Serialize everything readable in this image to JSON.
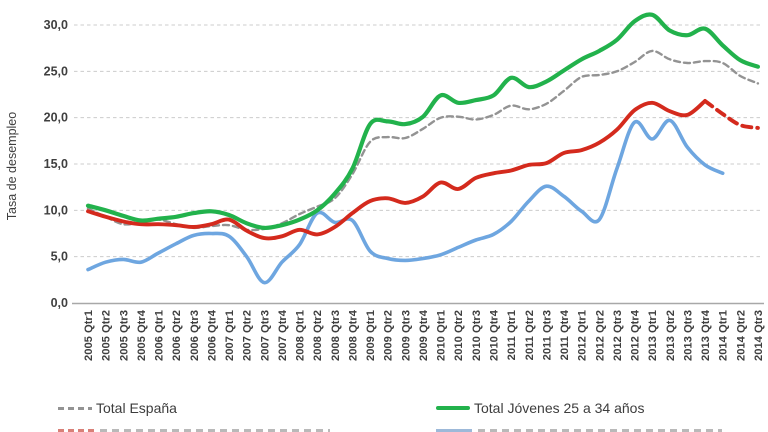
{
  "figure": {
    "y_axis": {
      "title": "Tasa de desempleo",
      "tick_labels": [
        "0,0",
        "5,0",
        "10,0",
        "15,0",
        "20,0",
        "25,0",
        "30,0"
      ],
      "tick_values": [
        0,
        5,
        10,
        15,
        20,
        25,
        30
      ]
    },
    "legend": [
      {
        "label": "Total España",
        "swatch": "dashed-gray",
        "color": "#939393"
      },
      {
        "label": "Total Jóvenes 25 a 34 años",
        "swatch": "solid-green",
        "color": "#22b24c"
      }
    ],
    "legend_row2_clipped": {
      "left_swatch_color": "#d98078",
      "right_swatch_color": "#9db9d9"
    }
  },
  "chart_data": {
    "type": "line",
    "title": "",
    "xlabel": "",
    "ylabel": "Tasa de desempleo",
    "ylim": [
      0,
      32.5
    ],
    "grid": "horizontal-dashed",
    "legend_position": "bottom",
    "categories": [
      "2005 Qtr1",
      "2005 Qtr2",
      "2005 Qtr3",
      "2005 Qtr4",
      "2006 Qtr1",
      "2006 Qtr2",
      "2006 Qtr3",
      "2006 Qtr4",
      "2007 Qtr1",
      "2007 Qtr2",
      "2007 Qtr3",
      "2007 Qtr4",
      "2008 Qtr1",
      "2008 Qtr2",
      "2008 Qtr3",
      "2008 Qtr4",
      "2009 Qtr1",
      "2009 Qtr2",
      "2009 Qtr3",
      "2009 Qtr4",
      "2010 Qtr1",
      "2010 Qtr2",
      "2010 Qtr3",
      "2010 Qtr4",
      "2011 Qtr1",
      "2011 Qtr2",
      "2011 Qtr3",
      "2011 Qtr4",
      "2012 Qtr1",
      "2012 Qtr2",
      "2012 Qtr3",
      "2012 Qtr4",
      "2013 Qtr1",
      "2013 Qtr2",
      "2013 Qtr3",
      "2013 Qtr4",
      "2014 Qtr1",
      "2014 Qtr2",
      "2014 Qtr3"
    ],
    "series": [
      {
        "id": "espana",
        "label": "Total España",
        "color": "#939393",
        "stroke_width": 2.4,
        "line_style": "dashed",
        "dash": "6 4",
        "start_index": 0,
        "values": [
          10.2,
          9.3,
          8.5,
          8.7,
          9.0,
          8.5,
          8.1,
          8.3,
          8.4,
          7.9,
          8.0,
          8.6,
          9.6,
          10.4,
          11.3,
          13.9,
          17.4,
          17.9,
          17.8,
          18.8,
          20.0,
          20.1,
          19.8,
          20.3,
          21.3,
          20.9,
          21.5,
          22.9,
          24.4,
          24.6,
          25.0,
          26.0,
          27.2,
          26.3,
          25.9,
          26.1,
          25.9,
          24.5,
          23.7
        ]
      },
      {
        "id": "blue_series",
        "label": "",
        "color": "#6ea6e0",
        "stroke_width": 3.6,
        "line_style": "solid",
        "dash": "",
        "start_index": 0,
        "values": [
          3.6,
          4.4,
          4.7,
          4.4,
          5.4,
          6.4,
          7.3,
          7.5,
          7.2,
          5.0,
          2.2,
          4.4,
          6.3,
          9.7,
          8.7,
          8.9,
          5.6,
          4.8,
          4.6,
          4.8,
          5.2,
          6.0,
          6.8,
          7.4,
          8.8,
          11.0,
          12.6,
          11.5,
          9.9,
          9.0,
          14.5,
          19.5,
          17.7,
          19.7,
          16.8,
          14.9,
          14.0
        ]
      },
      {
        "id": "red_series",
        "label": "",
        "color": "#d42a1d",
        "stroke_width": 3.9,
        "line_style": "solid",
        "dash": "",
        "start_index": 0,
        "values": [
          9.9,
          9.3,
          8.8,
          8.5,
          8.5,
          8.4,
          8.2,
          8.5,
          9.0,
          7.8,
          7.0,
          7.2,
          7.9,
          7.4,
          8.2,
          9.7,
          11.0,
          11.3,
          10.8,
          11.5,
          13.0,
          12.3,
          13.5,
          14.0,
          14.3,
          14.9,
          15.1,
          16.2,
          16.5,
          17.3,
          18.7,
          20.8,
          21.6,
          20.7,
          20.3,
          21.8
        ]
      },
      {
        "id": "red_series_projection",
        "label": "",
        "color": "#d42a1d",
        "stroke_width": 3.9,
        "line_style": "dashed",
        "dash": "9 6",
        "start_index": 35,
        "values": [
          21.8,
          20.4,
          19.2,
          18.9
        ]
      },
      {
        "id": "jovenes_25_34",
        "label": "Total Jóvenes 25 a 34 años",
        "color": "#22b24c",
        "stroke_width": 4.2,
        "line_style": "solid",
        "dash": "",
        "start_index": 0,
        "values": [
          10.5,
          10.0,
          9.4,
          8.9,
          9.1,
          9.3,
          9.7,
          9.9,
          9.5,
          8.6,
          8.1,
          8.4,
          9.0,
          10.0,
          11.8,
          14.5,
          19.3,
          19.6,
          19.3,
          20.1,
          22.4,
          21.6,
          21.9,
          22.4,
          24.3,
          23.3,
          23.9,
          25.1,
          26.3,
          27.2,
          28.4,
          30.4,
          31.1,
          29.4,
          28.9,
          29.6,
          27.8,
          26.2,
          25.5
        ]
      }
    ]
  }
}
